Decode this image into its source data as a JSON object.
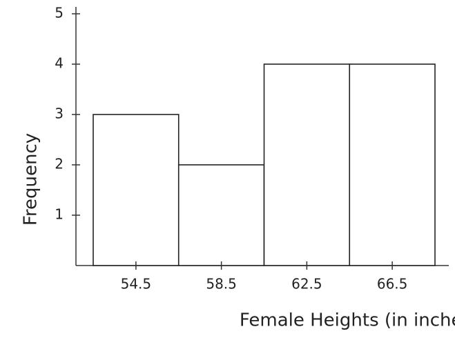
{
  "chart_data": {
    "type": "bar",
    "x_label": "Female Heights (in inches)",
    "y_label": "Frequency",
    "categories": [
      "54.5",
      "58.5",
      "62.5",
      "66.5"
    ],
    "values": [
      3,
      2,
      4,
      4
    ],
    "color": "#ffffff",
    "ylim": [
      0,
      5
    ],
    "yticks": [
      1,
      2,
      3,
      4,
      5
    ],
    "grid": false
  }
}
